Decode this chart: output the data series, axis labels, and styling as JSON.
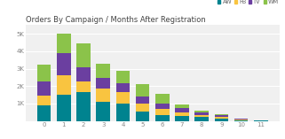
{
  "title": "Orders By Campaign / Months After Registration",
  "categories": [
    0,
    1,
    2,
    3,
    4,
    5,
    6,
    7,
    8,
    9,
    10,
    11
  ],
  "series": {
    "AW": [
      900,
      1500,
      1650,
      1100,
      1000,
      550,
      350,
      300,
      220,
      150,
      50,
      5
    ],
    "FB": [
      550,
      1100,
      600,
      750,
      650,
      450,
      350,
      200,
      120,
      80,
      35,
      5
    ],
    "TV": [
      800,
      1300,
      850,
      600,
      500,
      400,
      280,
      250,
      130,
      80,
      25,
      5
    ],
    "WM": [
      1000,
      1100,
      1350,
      850,
      700,
      700,
      550,
      200,
      100,
      50,
      30,
      5
    ]
  },
  "colors": {
    "AW": "#00838F",
    "FB": "#F9C440",
    "TV": "#6B3FA0",
    "WM": "#8BC34A"
  },
  "legend_labels": [
    "AW",
    "FB",
    "TV",
    "WM"
  ],
  "ylim": [
    0,
    5500
  ],
  "yticks": [
    0,
    1000,
    2000,
    3000,
    4000,
    5000
  ],
  "ytick_labels": [
    "",
    "1K",
    "2K",
    "3K",
    "4K",
    "5K"
  ],
  "bg_color": "#ffffff",
  "plot_bg_color": "#f0f0f0",
  "title_fontsize": 6.0,
  "tick_fontsize": 5.0,
  "legend_fontsize": 4.8
}
